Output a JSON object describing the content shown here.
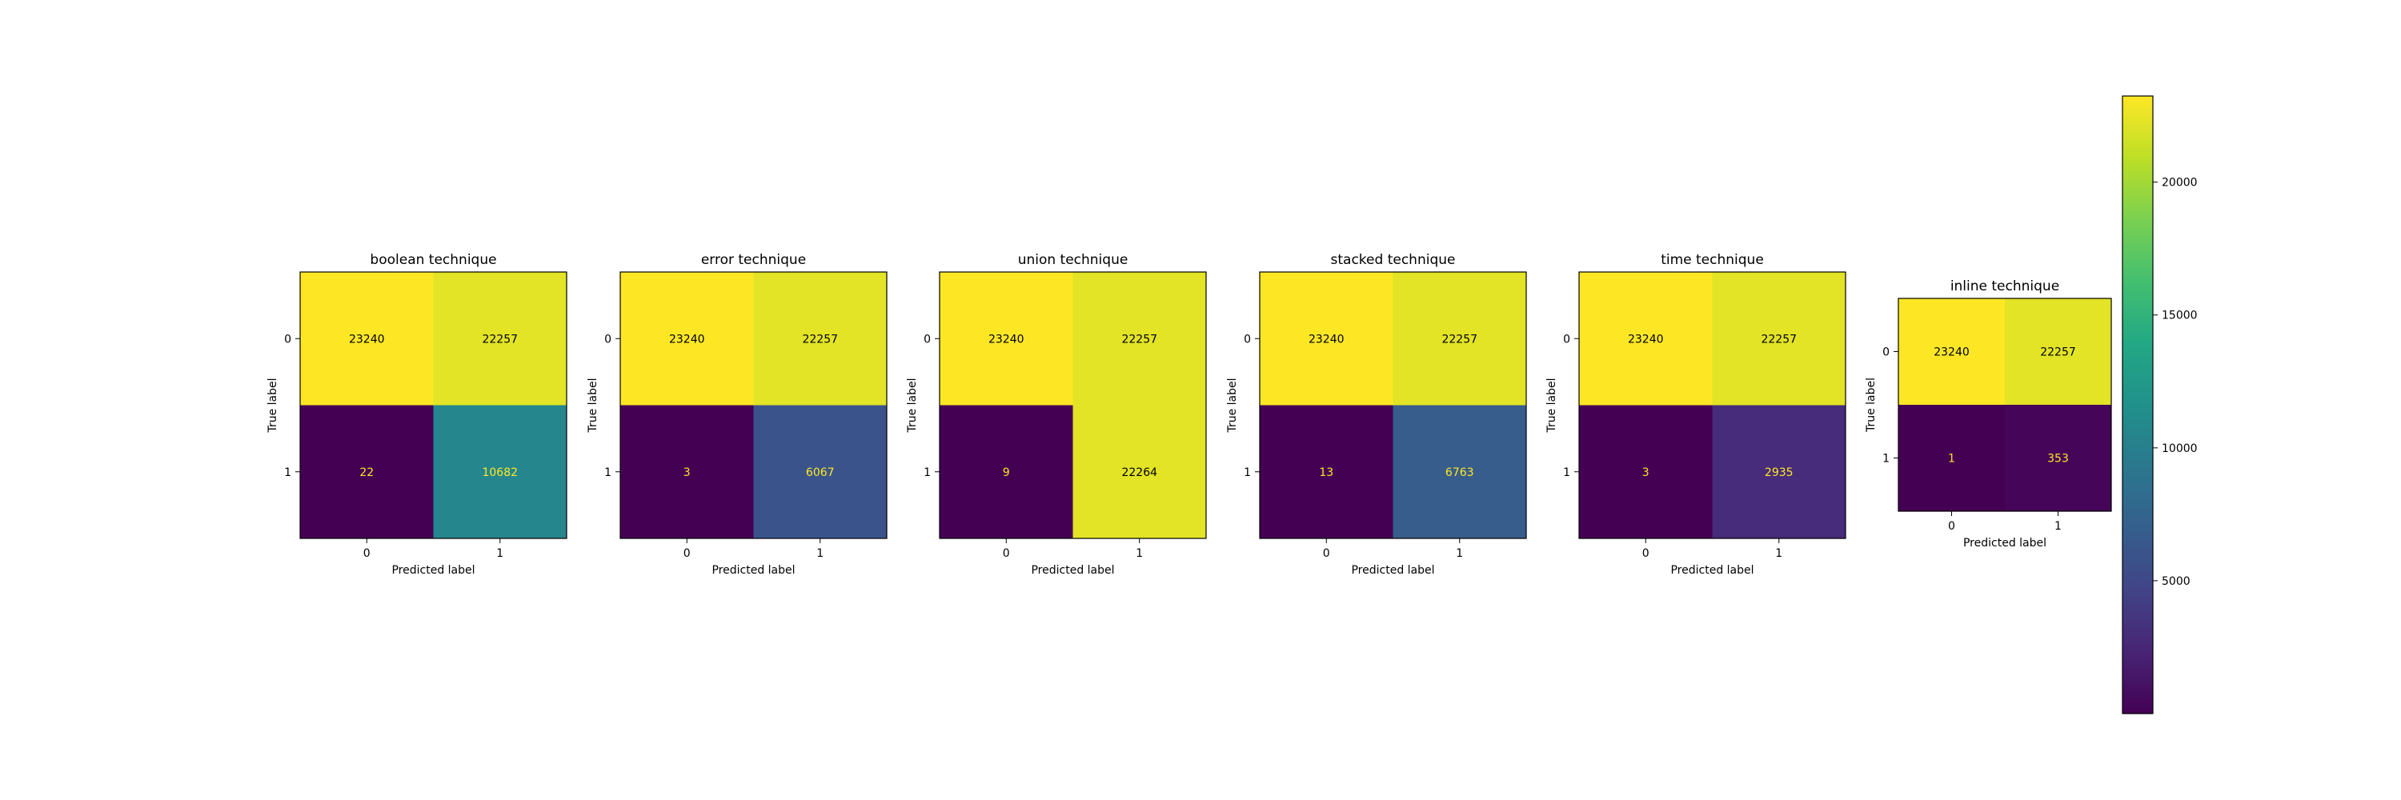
{
  "chart_data": {
    "type": "heatmap",
    "colormap": "viridis",
    "colorbar": {
      "min": 1,
      "max": 23240,
      "ticks": [
        5000,
        10000,
        15000,
        20000
      ],
      "tick_labels": [
        "5000",
        "10000",
        "15000",
        "20000"
      ]
    },
    "annotation_colors": {
      "on_dark": "#fde725",
      "on_light": "#000000"
    },
    "panels": [
      {
        "title": "boolean technique",
        "xlabel": "Predicted label",
        "ylabel": "True label",
        "x_ticks": [
          "0",
          "1"
        ],
        "y_ticks": [
          "0",
          "1"
        ],
        "matrix": [
          [
            23240,
            22257
          ],
          [
            22,
            10682
          ]
        ]
      },
      {
        "title": "error technique",
        "xlabel": "Predicted label",
        "ylabel": "True label",
        "x_ticks": [
          "0",
          "1"
        ],
        "y_ticks": [
          "0",
          "1"
        ],
        "matrix": [
          [
            23240,
            22257
          ],
          [
            3,
            6067
          ]
        ]
      },
      {
        "title": "union technique",
        "xlabel": "Predicted label",
        "ylabel": "True label",
        "x_ticks": [
          "0",
          "1"
        ],
        "y_ticks": [
          "0",
          "1"
        ],
        "matrix": [
          [
            23240,
            22257
          ],
          [
            9,
            22264
          ]
        ]
      },
      {
        "title": "stacked technique",
        "xlabel": "Predicted label",
        "ylabel": "True label",
        "x_ticks": [
          "0",
          "1"
        ],
        "y_ticks": [
          "0",
          "1"
        ],
        "matrix": [
          [
            23240,
            22257
          ],
          [
            13,
            6763
          ]
        ]
      },
      {
        "title": "time technique",
        "xlabel": "Predicted label",
        "ylabel": "True label",
        "x_ticks": [
          "0",
          "1"
        ],
        "y_ticks": [
          "0",
          "1"
        ],
        "matrix": [
          [
            23240,
            22257
          ],
          [
            3,
            2935
          ]
        ]
      },
      {
        "title": "inline technique",
        "xlabel": "Predicted label",
        "ylabel": "True label",
        "x_ticks": [
          "0",
          "1"
        ],
        "y_ticks": [
          "0",
          "1"
        ],
        "matrix": [
          [
            23240,
            22257
          ],
          [
            1,
            353
          ]
        ]
      }
    ]
  }
}
